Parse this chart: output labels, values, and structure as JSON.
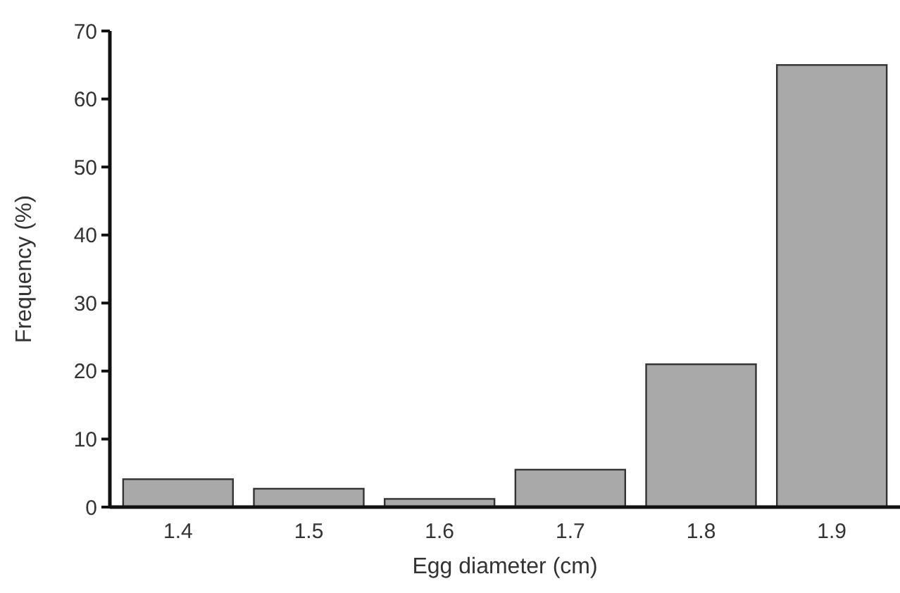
{
  "chart_data": {
    "type": "bar",
    "xlabel": "Egg diameter (cm)",
    "ylabel": "Frequency (%)",
    "categories": [
      "1.4",
      "1.5",
      "1.6",
      "1.7",
      "1.8",
      "1.9"
    ],
    "values": [
      4.1,
      2.7,
      1.2,
      5.5,
      21,
      65
    ],
    "color": "#a9a9a9",
    "ylim": [
      0,
      70
    ],
    "yticks": [
      0,
      10,
      20,
      30,
      40,
      50,
      60,
      70
    ],
    "grid": false
  }
}
